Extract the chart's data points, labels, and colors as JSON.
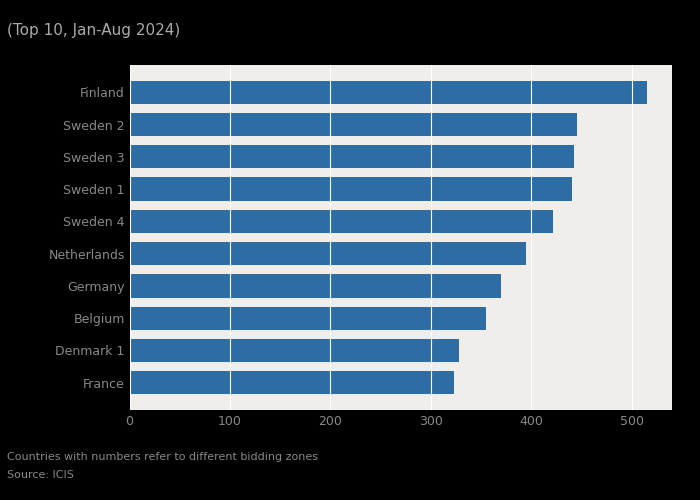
{
  "title": "(Top 10, Jan-Aug 2024)",
  "categories": [
    "France",
    "Denmark 1",
    "Belgium",
    "Germany",
    "Netherlands",
    "Sweden 4",
    "Sweden 1",
    "Sweden 3",
    "Sweden 2",
    "Finland"
  ],
  "values": [
    323,
    328,
    355,
    370,
    395,
    422,
    440,
    442,
    445,
    515
  ],
  "bar_color": "#2E6DA4",
  "xlim": [
    0,
    540
  ],
  "xticks": [
    0,
    100,
    200,
    300,
    400,
    500
  ],
  "footnote1": "Countries with numbers refer to different bidding zones",
  "footnote2": "Source: ICIS",
  "figure_background": "#000000",
  "plot_background": "#F0EEEA",
  "title_color": "#AAAAAA",
  "label_color": "#888888",
  "tick_color": "#888888",
  "footnote_color": "#888888",
  "grid_color": "#FFFFFF",
  "title_fontsize": 11,
  "label_fontsize": 9,
  "tick_fontsize": 9,
  "footnote_fontsize": 8
}
